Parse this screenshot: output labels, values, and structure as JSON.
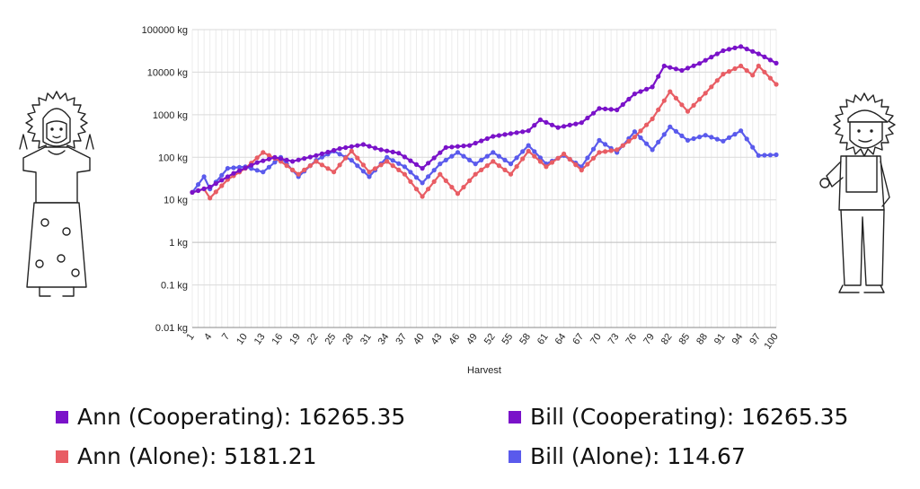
{
  "chart_data": {
    "type": "line",
    "title": "",
    "xlabel": "Harvest",
    "ylabel": "",
    "yscale": "log",
    "ylim": [
      0.01,
      100000
    ],
    "xlim": [
      1,
      100
    ],
    "grid": true,
    "y_tick_labels": [
      "0.01 kg",
      "0.1 kg",
      "1 kg",
      "10 kg",
      "100 kg",
      "1000 kg",
      "10000 kg",
      "100000 kg"
    ],
    "x_tick_labels": [
      "1",
      "4",
      "7",
      "10",
      "13",
      "16",
      "19",
      "22",
      "25",
      "28",
      "31",
      "34",
      "37",
      "40",
      "43",
      "46",
      "49",
      "52",
      "55",
      "58",
      "61",
      "64",
      "67",
      "70",
      "73",
      "76",
      "79",
      "82",
      "85",
      "88",
      "91",
      "94",
      "97",
      "100"
    ],
    "series": [
      {
        "name": "Ann (Cooperating)",
        "color": "#7a12c9",
        "points": [
          [
            1,
            15
          ],
          [
            4,
            20
          ],
          [
            8,
            42
          ],
          [
            12,
            75
          ],
          [
            15,
            100
          ],
          [
            18,
            80
          ],
          [
            22,
            110
          ],
          [
            26,
            160
          ],
          [
            30,
            200
          ],
          [
            33,
            150
          ],
          [
            36,
            125
          ],
          [
            40,
            55
          ],
          [
            44,
            170
          ],
          [
            48,
            190
          ],
          [
            52,
            310
          ],
          [
            55,
            360
          ],
          [
            58,
            420
          ],
          [
            60,
            760
          ],
          [
            63,
            500
          ],
          [
            67,
            650
          ],
          [
            70,
            1400
          ],
          [
            73,
            1300
          ],
          [
            76,
            3100
          ],
          [
            79,
            4500
          ],
          [
            81,
            14000
          ],
          [
            84,
            11000
          ],
          [
            87,
            16000
          ],
          [
            91,
            32000
          ],
          [
            94,
            40000
          ],
          [
            97,
            27000
          ],
          [
            100,
            16265.35
          ]
        ]
      },
      {
        "name": "Bill (Cooperating)",
        "color": "#7a12c9",
        "hidden_under": "Ann (Cooperating)",
        "points": []
      },
      {
        "name": "Ann (Alone)",
        "color": "#e85d64",
        "points": [
          [
            1,
            15
          ],
          [
            3,
            18
          ],
          [
            4,
            11
          ],
          [
            7,
            30
          ],
          [
            10,
            55
          ],
          [
            13,
            130
          ],
          [
            16,
            80
          ],
          [
            19,
            40
          ],
          [
            22,
            80
          ],
          [
            25,
            45
          ],
          [
            28,
            140
          ],
          [
            31,
            45
          ],
          [
            34,
            80
          ],
          [
            37,
            40
          ],
          [
            40,
            12
          ],
          [
            43,
            40
          ],
          [
            46,
            14
          ],
          [
            49,
            40
          ],
          [
            52,
            80
          ],
          [
            55,
            40
          ],
          [
            58,
            140
          ],
          [
            61,
            60
          ],
          [
            64,
            120
          ],
          [
            67,
            50
          ],
          [
            70,
            130
          ],
          [
            73,
            150
          ],
          [
            76,
            300
          ],
          [
            79,
            800
          ],
          [
            82,
            3500
          ],
          [
            85,
            1200
          ],
          [
            88,
            3200
          ],
          [
            91,
            9000
          ],
          [
            94,
            14000
          ],
          [
            96,
            8500
          ],
          [
            97,
            14000
          ],
          [
            100,
            5181.21
          ]
        ]
      },
      {
        "name": "Bill (Alone)",
        "color": "#5a5aec",
        "points": [
          [
            1,
            15
          ],
          [
            3,
            35
          ],
          [
            4,
            18
          ],
          [
            7,
            55
          ],
          [
            10,
            60
          ],
          [
            13,
            45
          ],
          [
            16,
            100
          ],
          [
            19,
            35
          ],
          [
            22,
            85
          ],
          [
            25,
            140
          ],
          [
            28,
            85
          ],
          [
            31,
            35
          ],
          [
            34,
            100
          ],
          [
            37,
            60
          ],
          [
            40,
            25
          ],
          [
            43,
            70
          ],
          [
            46,
            130
          ],
          [
            49,
            70
          ],
          [
            52,
            130
          ],
          [
            55,
            70
          ],
          [
            58,
            190
          ],
          [
            61,
            70
          ],
          [
            64,
            110
          ],
          [
            67,
            60
          ],
          [
            70,
            250
          ],
          [
            73,
            130
          ],
          [
            76,
            400
          ],
          [
            79,
            150
          ],
          [
            82,
            520
          ],
          [
            85,
            250
          ],
          [
            88,
            330
          ],
          [
            91,
            240
          ],
          [
            94,
            420
          ],
          [
            97,
            110
          ],
          [
            100,
            114.67
          ]
        ]
      }
    ]
  },
  "legend": {
    "ann_coop": {
      "label": "Ann (Cooperating): 16265.35",
      "color": "#7a12c9"
    },
    "ann_alone": {
      "label": "Ann (Alone): 5181.21",
      "color": "#e85d64"
    },
    "bill_coop": {
      "label": "Bill (Cooperating): 16265.35",
      "color": "#7a12c9"
    },
    "bill_alone": {
      "label": "Bill (Alone): 114.67",
      "color": "#5a5aec"
    }
  },
  "illustrations": {
    "left": "woman-with-sun-halo-illustration",
    "right": "man-in-cap-with-sun-halo-illustration"
  }
}
